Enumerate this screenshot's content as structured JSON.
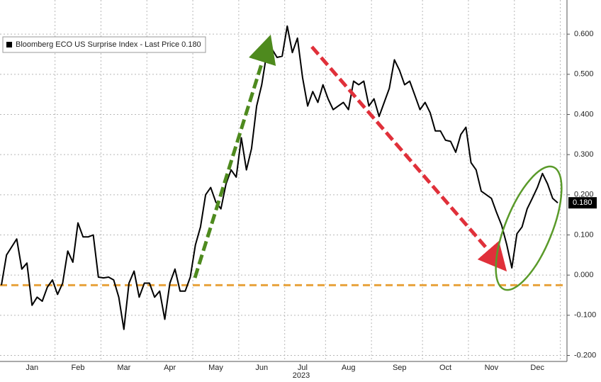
{
  "chart_data": {
    "type": "line",
    "categories": [
      null,
      null,
      null,
      null,
      null,
      null,
      "Jan",
      null,
      null,
      null,
      null,
      null,
      null,
      null,
      null,
      "Feb",
      null,
      null,
      null,
      null,
      null,
      null,
      null,
      null,
      "Mar",
      null,
      null,
      null,
      null,
      null,
      null,
      null,
      null,
      "Apr",
      null,
      null,
      null,
      null,
      null,
      null,
      null,
      null,
      "May",
      null,
      null,
      null,
      null,
      null,
      null,
      null,
      null,
      "Jun",
      null,
      null,
      null,
      null,
      null,
      null,
      null,
      "Jul",
      null,
      null,
      null,
      null,
      null,
      null,
      null,
      null,
      "Aug",
      null,
      null,
      null,
      null,
      null,
      null,
      null,
      null,
      null,
      "Sep",
      null,
      null,
      null,
      null,
      null,
      null,
      null,
      null,
      "Oct",
      null,
      null,
      null,
      null,
      null,
      null,
      null,
      null,
      "Nov",
      null,
      null,
      null,
      null,
      null,
      null,
      null,
      null,
      "Dec",
      null,
      null,
      null,
      null
    ],
    "x_sublabel": "2023",
    "series": [
      {
        "name": "Bloomberg ECO US Surprise Index - Last Price 0.180",
        "color": "#000000",
        "values": [
          -0.025,
          0.05,
          0.07,
          0.09,
          0.015,
          0.03,
          -0.075,
          -0.055,
          -0.065,
          -0.03,
          -0.012,
          -0.048,
          -0.02,
          0.06,
          0.032,
          0.13,
          0.095,
          0.095,
          0.1,
          -0.005,
          -0.007,
          -0.005,
          -0.012,
          -0.055,
          -0.135,
          -0.02,
          0.01,
          -0.055,
          -0.02,
          -0.02,
          -0.055,
          -0.04,
          -0.11,
          -0.02,
          0.015,
          -0.04,
          -0.04,
          -0.005,
          0.075,
          0.12,
          0.2,
          0.218,
          0.182,
          0.165,
          0.227,
          0.262,
          0.244,
          0.342,
          0.262,
          0.315,
          0.421,
          0.474,
          0.554,
          0.563,
          0.542,
          0.545,
          0.62,
          0.554,
          0.59,
          0.492,
          0.421,
          0.457,
          0.43,
          0.474,
          0.439,
          0.412,
          0.421,
          0.43,
          0.412,
          0.483,
          0.474,
          0.483,
          0.421,
          0.439,
          0.395,
          0.43,
          0.465,
          0.536,
          0.51,
          0.474,
          0.483,
          0.448,
          0.412,
          0.43,
          0.404,
          0.359,
          0.359,
          0.336,
          0.333,
          0.306,
          0.35,
          0.368,
          0.28,
          0.262,
          0.209,
          0.2,
          0.191,
          0.156,
          0.124,
          0.076,
          0.018,
          0.103,
          0.12,
          0.165,
          0.191,
          0.218,
          0.253,
          0.227,
          0.191,
          0.18
        ]
      }
    ],
    "last_price_label": "0.180",
    "reference_line": {
      "value": -0.025,
      "color": "#e8a33c"
    },
    "ylim": [
      -0.215,
      0.685
    ],
    "yticks": [
      {
        "value": -0.2,
        "label": "-0.200"
      },
      {
        "value": -0.1,
        "label": "-0.100"
      },
      {
        "value": 0,
        "label": "0.000"
      },
      {
        "value": 0.1,
        "label": "0.100"
      },
      {
        "value": 0.2,
        "label": "0.200"
      },
      {
        "value": 0.3,
        "label": "0.300"
      },
      {
        "value": 0.4,
        "label": "0.400"
      },
      {
        "value": 0.5,
        "label": "0.500"
      },
      {
        "value": 0.6,
        "label": "0.600"
      }
    ],
    "grid": true,
    "y_axis_side": "right"
  }
}
